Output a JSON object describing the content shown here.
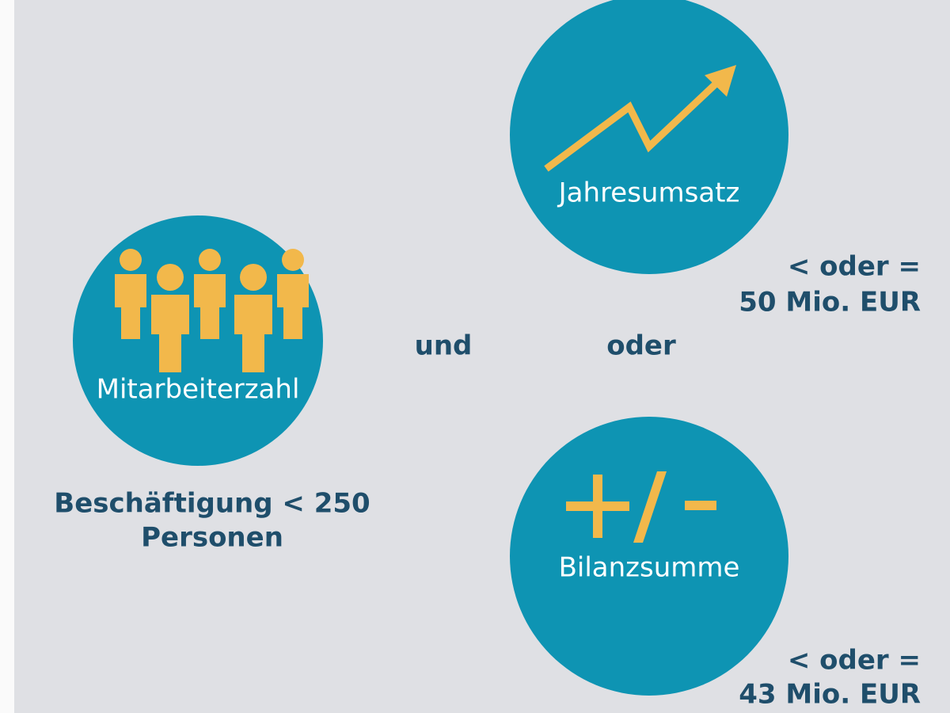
{
  "nodes": [
    {
      "label": "Mitarbeiterzahl",
      "condition": [
        "Beschäftigung < 250",
        "Personen"
      ]
    },
    {
      "label": "Jahresumsatz",
      "condition": [
        "< oder =",
        "50 Mio. EUR"
      ]
    },
    {
      "label": "Bilanzsumme",
      "condition": [
        "< oder =",
        "43 Mio. EUR"
      ]
    }
  ],
  "connectors": [
    "und",
    "oder"
  ]
}
